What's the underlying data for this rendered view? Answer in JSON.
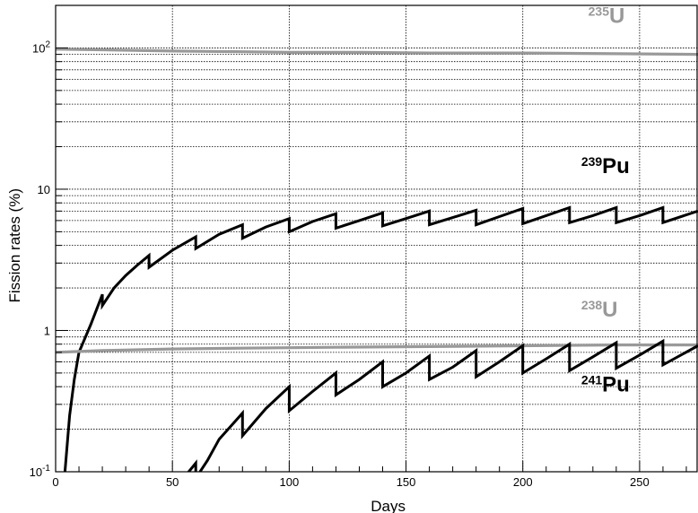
{
  "chart_data": {
    "type": "line",
    "title": "",
    "xlabel": "Days",
    "ylabel": "Fission rates (%)",
    "xlim": [
      0,
      275
    ],
    "ylim": [
      0.1,
      200
    ],
    "yscale": "log",
    "grid": true,
    "x_ticks": [
      0,
      50,
      100,
      150,
      200,
      250
    ],
    "y_ticks": [
      {
        "value": 0.1,
        "base": "10",
        "exp": "-1"
      },
      {
        "value": 1,
        "base": "1",
        "exp": ""
      },
      {
        "value": 10,
        "base": "10",
        "exp": ""
      },
      {
        "value": 100,
        "base": "10",
        "exp": "2"
      }
    ],
    "series": [
      {
        "name": "235U",
        "label_sup": "235",
        "label_main": "U",
        "color": "#999999",
        "points": [
          [
            0,
            98
          ],
          [
            20,
            97
          ],
          [
            50,
            95
          ],
          [
            80,
            94
          ],
          [
            100,
            93
          ],
          [
            130,
            93
          ],
          [
            160,
            92
          ],
          [
            200,
            92
          ],
          [
            240,
            91
          ],
          [
            275,
            90
          ]
        ]
      },
      {
        "name": "239Pu",
        "label_sup": "239",
        "label_main": "Pu",
        "color": "#000000",
        "points": [
          [
            4,
            0.1
          ],
          [
            6,
            0.25
          ],
          [
            8,
            0.45
          ],
          [
            10,
            0.7
          ],
          [
            15,
            1.1
          ],
          [
            20,
            1.8
          ],
          [
            20,
            1.5
          ],
          [
            25,
            2.0
          ],
          [
            30,
            2.45
          ],
          [
            35,
            2.9
          ],
          [
            40,
            3.4
          ],
          [
            40,
            2.8
          ],
          [
            50,
            3.7
          ],
          [
            60,
            4.6
          ],
          [
            60,
            3.8
          ],
          [
            70,
            4.8
          ],
          [
            80,
            5.6
          ],
          [
            80,
            4.5
          ],
          [
            90,
            5.4
          ],
          [
            100,
            6.2
          ],
          [
            100,
            5.0
          ],
          [
            110,
            5.9
          ],
          [
            120,
            6.7
          ],
          [
            120,
            5.3
          ],
          [
            130,
            6.0
          ],
          [
            140,
            6.8
          ],
          [
            140,
            5.5
          ],
          [
            150,
            6.2
          ],
          [
            160,
            7.0
          ],
          [
            160,
            5.6
          ],
          [
            170,
            6.3
          ],
          [
            180,
            7.1
          ],
          [
            180,
            5.6
          ],
          [
            190,
            6.4
          ],
          [
            200,
            7.3
          ],
          [
            200,
            5.7
          ],
          [
            210,
            6.5
          ],
          [
            220,
            7.4
          ],
          [
            220,
            5.8
          ],
          [
            230,
            6.5
          ],
          [
            240,
            7.4
          ],
          [
            240,
            5.8
          ],
          [
            250,
            6.5
          ],
          [
            260,
            7.4
          ],
          [
            260,
            5.8
          ],
          [
            275,
            7.0
          ]
        ]
      },
      {
        "name": "238U",
        "label_sup": "238",
        "label_main": "U",
        "color": "#999999",
        "points": [
          [
            0,
            0.7
          ],
          [
            20,
            0.72
          ],
          [
            50,
            0.74
          ],
          [
            80,
            0.75
          ],
          [
            120,
            0.76
          ],
          [
            160,
            0.77
          ],
          [
            200,
            0.78
          ],
          [
            240,
            0.79
          ],
          [
            275,
            0.79
          ]
        ]
      },
      {
        "name": "241Pu",
        "label_sup": "241",
        "label_main": "Pu",
        "color": "#000000",
        "points": [
          [
            53,
            0.088
          ],
          [
            57,
            0.1
          ],
          [
            60,
            0.115
          ],
          [
            60,
            0.09
          ],
          [
            65,
            0.12
          ],
          [
            70,
            0.17
          ],
          [
            80,
            0.26
          ],
          [
            80,
            0.18
          ],
          [
            90,
            0.28
          ],
          [
            100,
            0.4
          ],
          [
            100,
            0.27
          ],
          [
            110,
            0.37
          ],
          [
            120,
            0.5
          ],
          [
            120,
            0.35
          ],
          [
            130,
            0.45
          ],
          [
            140,
            0.6
          ],
          [
            140,
            0.4
          ],
          [
            150,
            0.5
          ],
          [
            160,
            0.66
          ],
          [
            160,
            0.45
          ],
          [
            170,
            0.55
          ],
          [
            180,
            0.72
          ],
          [
            180,
            0.47
          ],
          [
            190,
            0.6
          ],
          [
            200,
            0.78
          ],
          [
            200,
            0.5
          ],
          [
            210,
            0.63
          ],
          [
            220,
            0.8
          ],
          [
            220,
            0.52
          ],
          [
            230,
            0.65
          ],
          [
            240,
            0.82
          ],
          [
            240,
            0.54
          ],
          [
            250,
            0.67
          ],
          [
            260,
            0.84
          ],
          [
            260,
            0.57
          ],
          [
            275,
            0.78
          ]
        ]
      }
    ]
  }
}
